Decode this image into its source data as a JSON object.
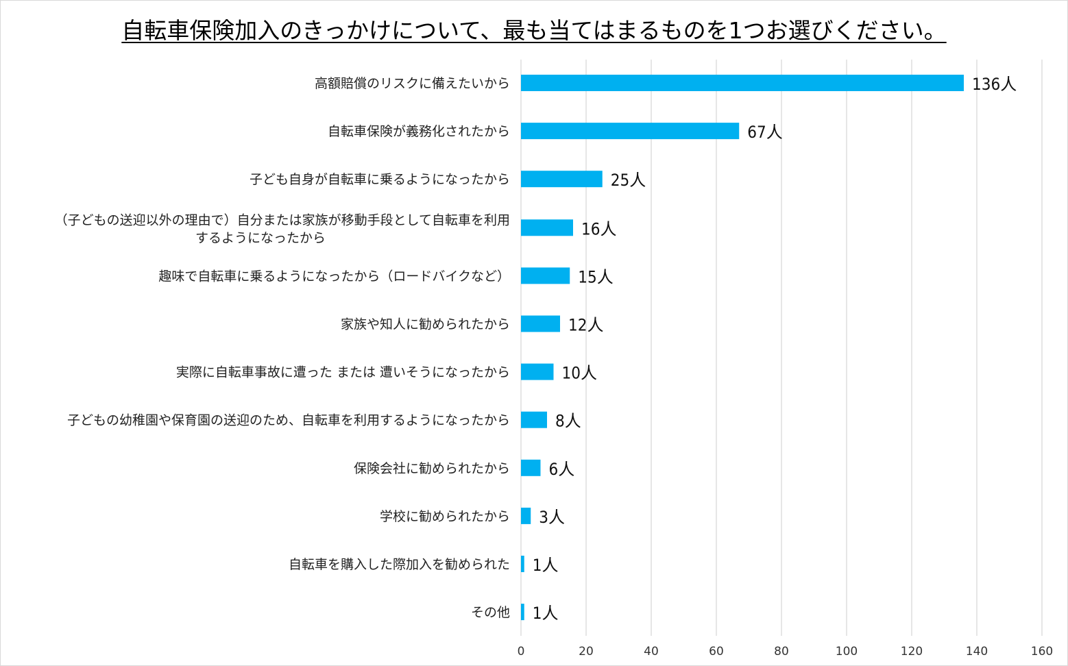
{
  "chart_data": {
    "type": "bar",
    "orientation": "horizontal",
    "title": "自転車保険加入のきっかけについて、最も当てはまるものを1つお選びください。",
    "categories": [
      [
        "高額賠償のリスクに備えたいから"
      ],
      [
        "自転車保険が義務化されたから"
      ],
      [
        "子ども自身が自転車に乗るようになったから"
      ],
      [
        "（子どもの送迎以外の理由で）自分または家族が移動手段として自転車を利用",
        "するようになったから"
      ],
      [
        "趣味で自転車に乗るようになったから（ロードバイクなど）"
      ],
      [
        "家族や知人に勧められたから"
      ],
      [
        "実際に自転車事故に遭った または 遭いそうになったから"
      ],
      [
        "子どもの幼稚園や保育園の送迎のため、自転車を利用するようになったから"
      ],
      [
        "保険会社に勧められたから"
      ],
      [
        "学校に勧められたから"
      ],
      [
        "自転車を購入した際加入を勧められた"
      ],
      [
        "その他"
      ]
    ],
    "values": [
      136,
      67,
      25,
      16,
      15,
      12,
      10,
      8,
      6,
      3,
      1,
      1
    ],
    "value_labels": [
      "136人",
      "67人",
      "25人",
      "16人",
      "15人",
      "12人",
      "10人",
      "8人",
      "6人",
      "3人",
      "1人",
      "1人"
    ],
    "xlim": [
      0,
      160
    ],
    "xticks": [
      0,
      20,
      40,
      60,
      80,
      100,
      120,
      140,
      160
    ],
    "grid": true,
    "bar_color": "#00b0f0",
    "grid_color": "#d9d9d9"
  }
}
